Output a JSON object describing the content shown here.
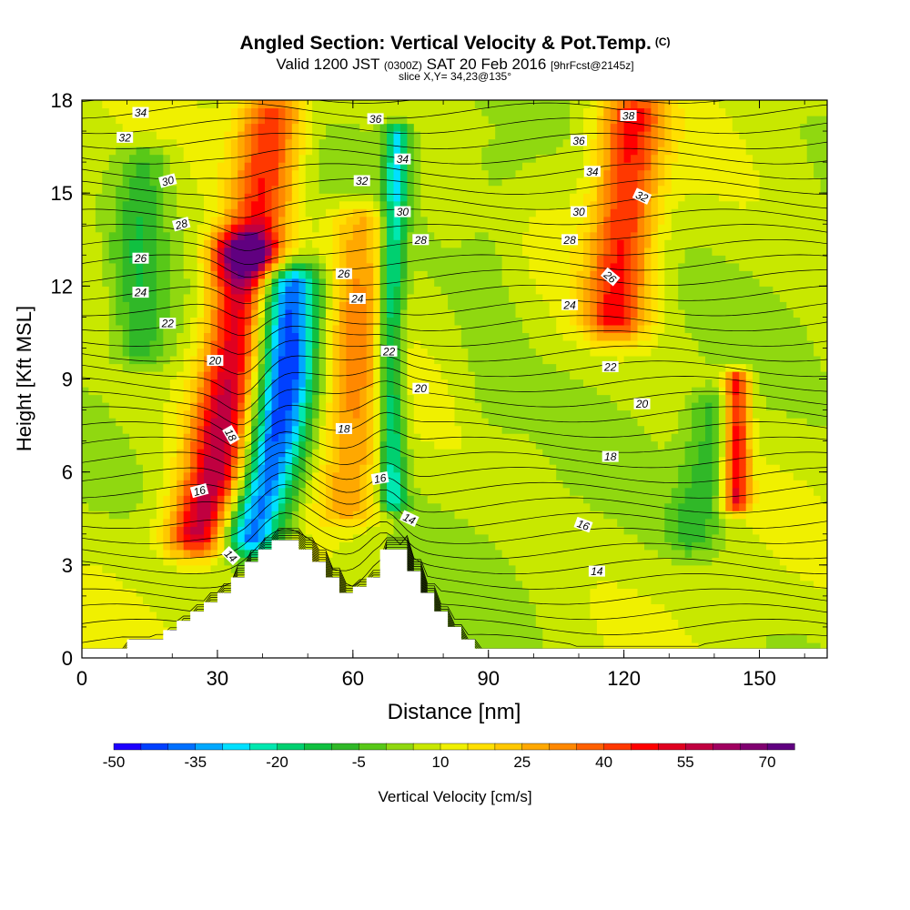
{
  "title": {
    "main": "Angled Section: Vertical Velocity & Pot.Temp.",
    "units_tag": "(C)"
  },
  "subtitle": {
    "valid": "Valid 1200 JST",
    "zulu": "(0300Z)",
    "date": "SAT 20 Feb 2016",
    "forecast": "[9hrFcst@2145z]"
  },
  "slice_label": "slice X,Y= 34,23@135°",
  "chart_data": {
    "type": "heatmap",
    "xlabel": "Distance [nm]",
    "ylabel": "Height [Kft MSL]",
    "xlim": [
      0,
      165
    ],
    "ylim": [
      0,
      18
    ],
    "x_ticks": [
      "0",
      "30",
      "60",
      "90",
      "120",
      "150"
    ],
    "x_tick_values": [
      0,
      30,
      60,
      90,
      120,
      150
    ],
    "y_ticks": [
      "0",
      "3",
      "6",
      "9",
      "12",
      "15",
      "18"
    ],
    "y_tick_values": [
      0,
      3,
      6,
      9,
      12,
      15,
      18
    ],
    "colorbar": {
      "label": "Vertical Velocity [cm/s]",
      "tick_labels": [
        "-50",
        "-35",
        "-20",
        "-5",
        "10",
        "25",
        "40",
        "55",
        "70"
      ],
      "tick_values": [
        -50,
        -35,
        -20,
        -5,
        10,
        25,
        40,
        55,
        70
      ],
      "min": -50,
      "max": 75,
      "step": 5,
      "colors": [
        "#1e00ff",
        "#0040ff",
        "#0070ff",
        "#00a8ff",
        "#00e0ff",
        "#00e8b0",
        "#00d070",
        "#10c040",
        "#30b828",
        "#58c818",
        "#90d810",
        "#c8e800",
        "#f0f000",
        "#ffe000",
        "#ffc800",
        "#ffa800",
        "#ff8800",
        "#ff6000",
        "#ff3800",
        "#ff0000",
        "#e00020",
        "#c00040",
        "#a00060",
        "#800070",
        "#600080"
      ]
    },
    "w_features": [
      {
        "kind": "updraft",
        "path": [
          [
            36,
            13
          ],
          [
            34,
            10
          ],
          [
            30,
            6
          ],
          [
            26,
            4
          ]
        ],
        "width": 5,
        "peak": 60
      },
      {
        "kind": "updraft",
        "path": [
          [
            42,
            17.5
          ],
          [
            40,
            15
          ],
          [
            37,
            13
          ]
        ],
        "width": 5,
        "peak": 45
      },
      {
        "kind": "downdraft",
        "path": [
          [
            46,
            12
          ],
          [
            45,
            9
          ],
          [
            41,
            6
          ],
          [
            37,
            4
          ]
        ],
        "width": 5,
        "peak": -45
      },
      {
        "kind": "downdraft",
        "path": [
          [
            70,
            17
          ],
          [
            68,
            10
          ],
          [
            69,
            5
          ]
        ],
        "width": 2,
        "peak": -25
      },
      {
        "kind": "updraft",
        "path": [
          [
            62,
            14
          ],
          [
            60,
            9
          ],
          [
            59,
            5
          ]
        ],
        "width": 5,
        "peak": 30
      },
      {
        "kind": "updraft",
        "path": [
          [
            122,
            17.5
          ],
          [
            120,
            14
          ],
          [
            118,
            11
          ]
        ],
        "width": 5,
        "peak": 45
      },
      {
        "kind": "updraft",
        "path": [
          [
            145,
            9
          ],
          [
            145,
            7
          ],
          [
            145,
            5
          ]
        ],
        "width": 2,
        "peak": 50
      },
      {
        "kind": "downdraft",
        "path": [
          [
            140,
            8
          ],
          [
            138,
            6
          ],
          [
            135,
            4
          ]
        ],
        "width": 4,
        "peak": -8
      },
      {
        "kind": "downdraft",
        "path": [
          [
            14,
            16
          ],
          [
            12,
            13
          ],
          [
            13,
            10
          ]
        ],
        "width": 4,
        "peak": -8
      },
      {
        "kind": "downdraft",
        "path": [
          [
            92,
            16
          ],
          [
            90,
            12
          ],
          [
            92,
            8
          ]
        ],
        "width": 5,
        "peak": 2
      }
    ],
    "terrain": {
      "x": [
        0,
        10,
        15,
        18,
        21,
        24,
        27,
        30,
        33,
        36,
        39,
        42,
        45,
        48,
        51,
        54,
        57,
        60,
        63,
        66,
        69,
        72,
        75,
        78,
        81,
        84,
        87,
        90,
        93,
        96,
        165
      ],
      "height": [
        0.3,
        0.6,
        0.6,
        0.9,
        1.2,
        1.5,
        1.8,
        2.1,
        2.6,
        3.1,
        3.5,
        3.8,
        3.8,
        3.5,
        3.1,
        2.6,
        2.1,
        2.3,
        2.6,
        3.5,
        3.5,
        2.8,
        2.1,
        1.5,
        1.0,
        0.6,
        0.3,
        0.3,
        0.3,
        0.3,
        0.3
      ]
    },
    "isentropes": [
      {
        "value": 14,
        "labels": [
          [
            33,
            3.3,
            45
          ],
          [
            72.5,
            4.5,
            25
          ],
          [
            114,
            2.8,
            0
          ]
        ]
      },
      {
        "value": 16,
        "labels": [
          [
            26,
            5.4,
            -15
          ],
          [
            66,
            5.8,
            -10
          ],
          [
            111,
            4.3,
            20
          ]
        ]
      },
      {
        "value": 18,
        "labels": [
          [
            33,
            7.2,
            60
          ],
          [
            58,
            7.4,
            0
          ],
          [
            117,
            6.5,
            0
          ]
        ]
      },
      {
        "value": 20,
        "labels": [
          [
            29.5,
            9.6,
            0
          ],
          [
            75,
            8.7,
            0
          ],
          [
            124,
            8.2,
            0
          ]
        ]
      },
      {
        "value": 22,
        "labels": [
          [
            19,
            10.8,
            0
          ],
          [
            68,
            9.9,
            0
          ],
          [
            117,
            9.4,
            0
          ]
        ]
      },
      {
        "value": 24,
        "labels": [
          [
            13,
            11.8,
            0
          ],
          [
            61,
            11.6,
            0
          ],
          [
            108,
            11.4,
            0
          ]
        ]
      },
      {
        "value": 26,
        "labels": [
          [
            13,
            12.9,
            0
          ],
          [
            58,
            12.4,
            0
          ],
          [
            117,
            12.3,
            40
          ]
        ]
      },
      {
        "value": 28,
        "labels": [
          [
            22,
            14.0,
            -15
          ],
          [
            75,
            13.5,
            0
          ],
          [
            108,
            13.5,
            0
          ]
        ]
      },
      {
        "value": 30,
        "labels": [
          [
            19,
            15.4,
            -15
          ],
          [
            71,
            14.4,
            0
          ],
          [
            110,
            14.4,
            0
          ]
        ]
      },
      {
        "value": 32,
        "labels": [
          [
            9.5,
            16.8,
            0
          ],
          [
            62,
            15.4,
            0
          ],
          [
            124,
            14.9,
            25
          ]
        ]
      },
      {
        "value": 34,
        "labels": [
          [
            13,
            17.6,
            0
          ],
          [
            71,
            16.1,
            0
          ],
          [
            113,
            15.7,
            0
          ]
        ]
      },
      {
        "value": 36,
        "labels": [
          [
            65,
            17.4,
            0
          ],
          [
            110,
            16.7,
            0
          ]
        ]
      },
      {
        "value": 38,
        "labels": [
          [
            121,
            17.5,
            0
          ]
        ]
      }
    ]
  }
}
